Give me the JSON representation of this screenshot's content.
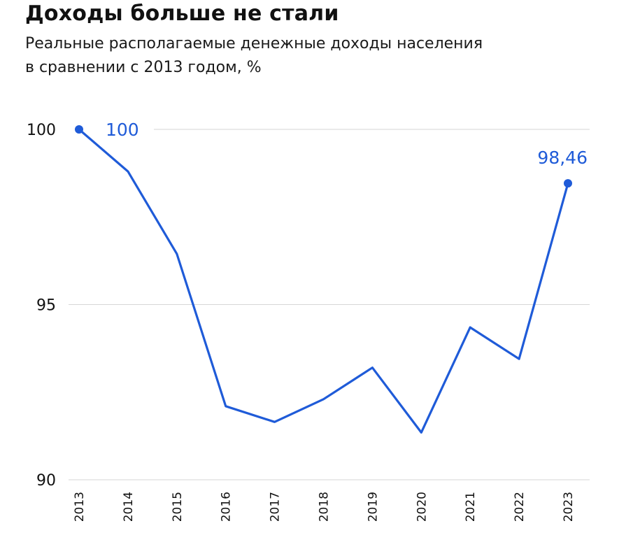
{
  "header": {
    "title": "Доходы больше не стали",
    "subtitle_line1": "Реальные располагаемые денежные доходы населения",
    "subtitle_line2": "в сравнении с 2013 годом, %"
  },
  "colors": {
    "line": "#1f5bd8",
    "grid": "#d6d6d6",
    "text": "#111111"
  },
  "chart_data": {
    "type": "line",
    "title": "Доходы больше не стали",
    "subtitle": "Реальные располагаемые денежные доходы населения в сравнении с 2013 годом, %",
    "xlabel": "",
    "ylabel": "",
    "categories": [
      "2013",
      "2014",
      "2015",
      "2016",
      "2017",
      "2018",
      "2019",
      "2020",
      "2021",
      "2022",
      "2023"
    ],
    "values": [
      100,
      98.8,
      96.45,
      92.1,
      91.65,
      92.3,
      93.2,
      91.35,
      94.35,
      93.45,
      98.46
    ],
    "ylim": [
      90,
      100
    ],
    "yticks": [
      "90",
      "95",
      "100"
    ],
    "grid": true,
    "annotations": [
      {
        "index": 0,
        "text": "100"
      },
      {
        "index": 10,
        "text": "98,46"
      }
    ]
  }
}
